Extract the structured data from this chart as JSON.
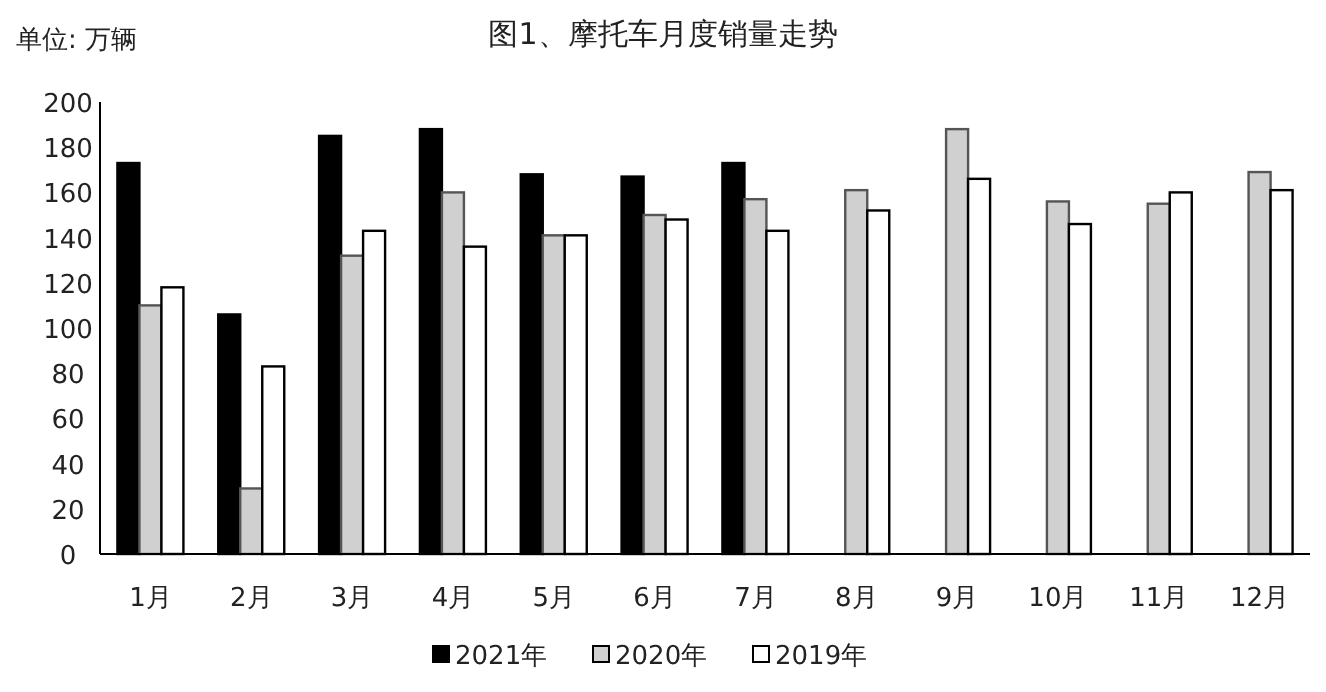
{
  "chart_data": {
    "type": "bar",
    "title": "图1、摩托车月度销量走势",
    "ylabel": "单位: 万辆",
    "categories": [
      "1月",
      "2月",
      "3月",
      "4月",
      "5月",
      "6月",
      "7月",
      "8月",
      "9月",
      "10月",
      "11月",
      "12月"
    ],
    "series": [
      {
        "name": "2021年",
        "color": "#000000",
        "values": [
          173,
          106,
          185,
          188,
          168,
          167,
          173,
          null,
          null,
          null,
          null,
          null
        ]
      },
      {
        "name": "2020年",
        "color": "#d0d0d0",
        "values": [
          110,
          29,
          132,
          160,
          141,
          150,
          157,
          161,
          188,
          156,
          155,
          169
        ]
      },
      {
        "name": "2019年",
        "color": "#ffffff",
        "values": [
          118,
          83,
          143,
          136,
          141,
          148,
          143,
          152,
          166,
          146,
          160,
          161
        ]
      }
    ],
    "ylim": [
      0,
      200
    ],
    "yticks": [
      0,
      20,
      40,
      60,
      80,
      100,
      120,
      140,
      160,
      180,
      200
    ],
    "grid": false,
    "legend": "bottom"
  }
}
